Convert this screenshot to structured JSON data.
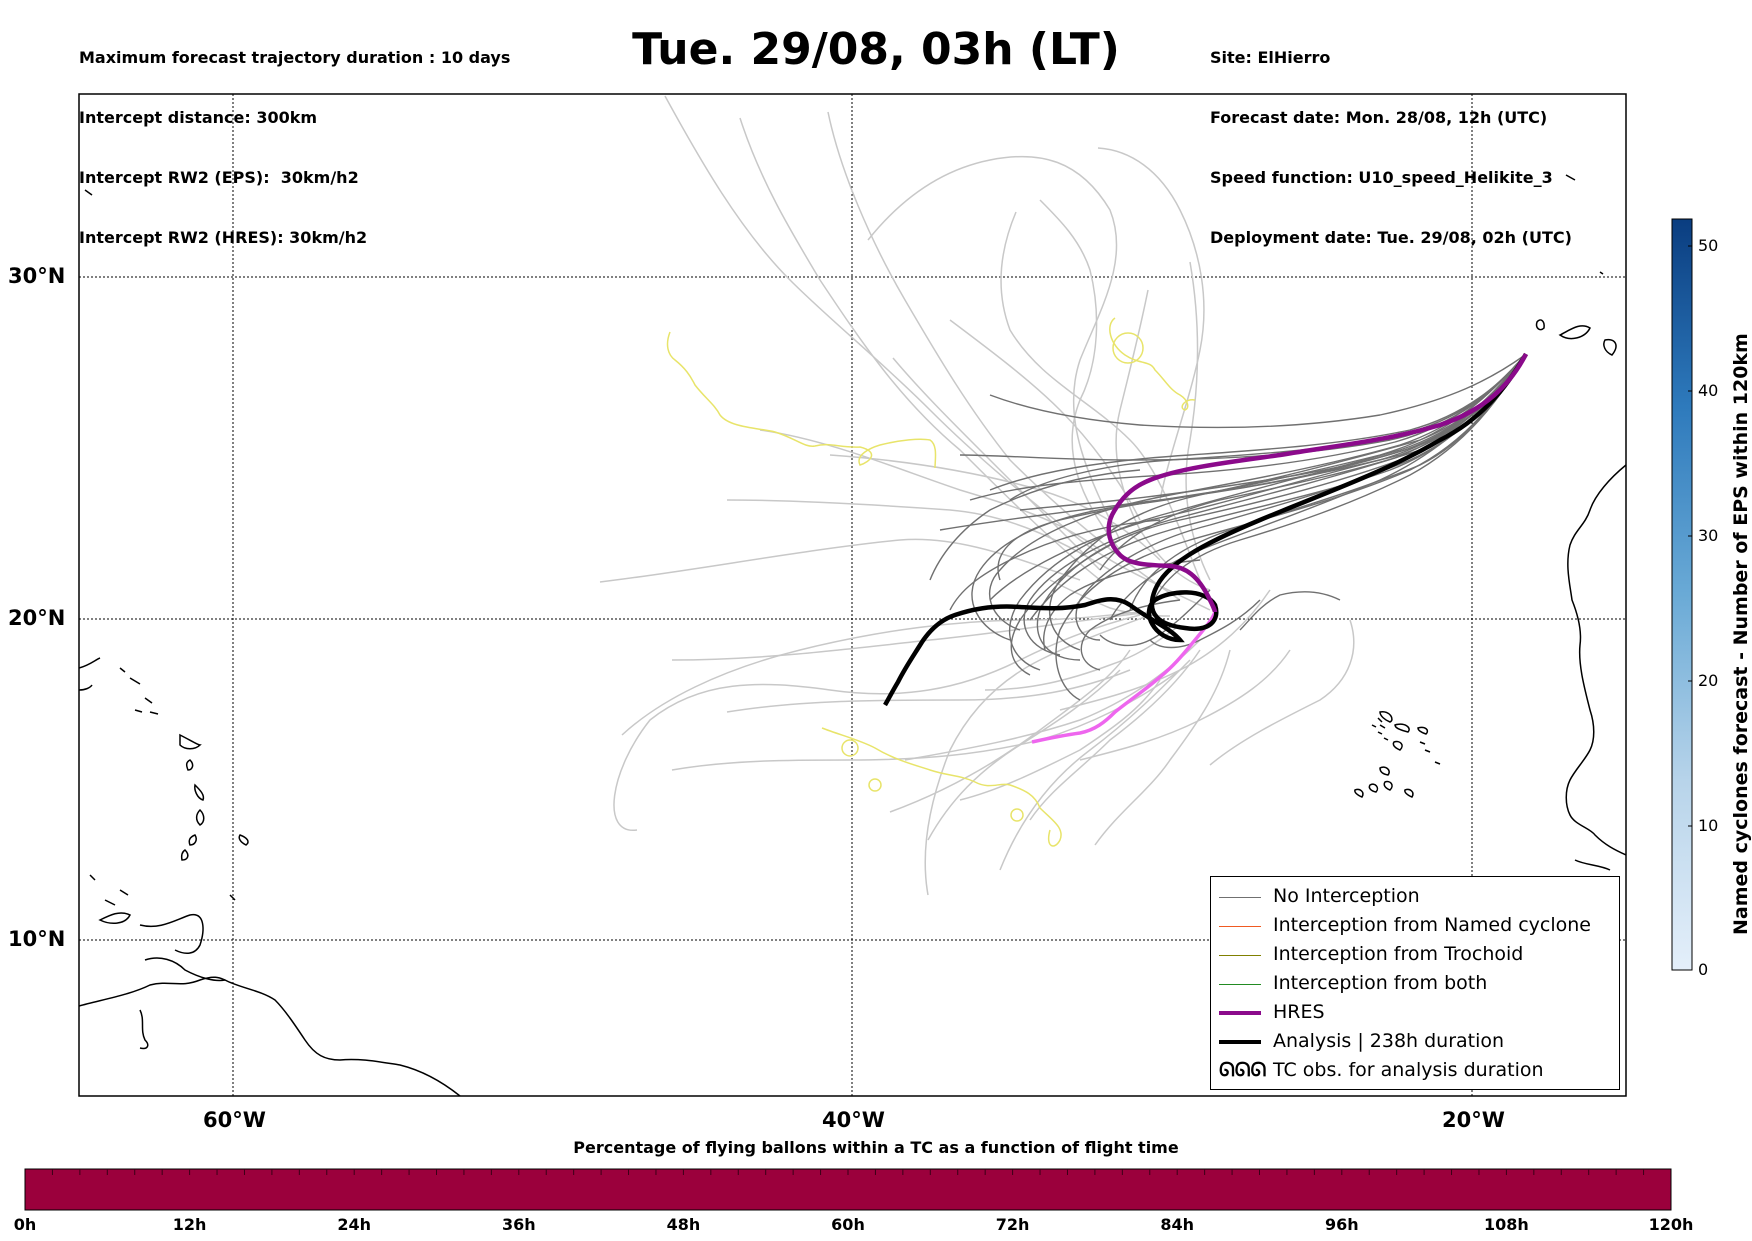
{
  "header_left": [
    "Maximum forecast trajectory duration : 10 days",
    "Intercept distance: 300km",
    "Intercept RW2 (EPS):  30km/h2",
    "Intercept RW2 (HRES): 30km/h2"
  ],
  "title": "Tue. 29/08, 03h (LT)",
  "header_right": [
    "Site: ElHierro",
    "Forecast date: Mon. 28/08, 12h (UTC)",
    "Speed function: U10_speed_Helikite_3",
    "Deployment date: Tue. 29/08, 02h (UTC)"
  ],
  "map": {
    "lon_labels": [
      "60°W",
      "40°W",
      "20°W"
    ],
    "lat_labels": [
      "30°N",
      "20°N",
      "10°N"
    ],
    "colors": {
      "no_interception": "#707070",
      "named_cyclone": "#f05a22",
      "trochoid": "#808000",
      "both": "#228b22",
      "hres": "#8b0a8b",
      "analysis": "#000000",
      "eps_light": "#c8c8c8",
      "yellow_track": "#e8e46a",
      "pink_track": "#ee66ee"
    }
  },
  "legend": {
    "items": [
      {
        "label": "No Interception",
        "style": "thin-gray"
      },
      {
        "label": "Interception from Named cyclone",
        "style": "thin-orange"
      },
      {
        "label": "Interception from Trochoid",
        "style": "thin-olive"
      },
      {
        "label": "Interception from both",
        "style": "thin-green"
      },
      {
        "label": "HRES",
        "style": "thick-purple"
      },
      {
        "label": "Analysis | 238h duration",
        "style": "thick-black"
      },
      {
        "label": "TC obs. for analysis duration",
        "style": "cyclone-symbols"
      }
    ],
    "tc_symbol": "ᘏᘏᘏ"
  },
  "colorbar_right": {
    "label": "Named cyclones forecast - Number of EPS within 120km",
    "ticks": [
      "0",
      "10",
      "20",
      "30",
      "40",
      "50"
    ]
  },
  "colorbar_bottom": {
    "title": "Percentage of flying ballons within a TC as a function of flight time",
    "ticks": [
      "0h",
      "12h",
      "24h",
      "36h",
      "48h",
      "60h",
      "72h",
      "84h",
      "96h",
      "108h",
      "120h"
    ],
    "fill_color": "#9b003c"
  }
}
